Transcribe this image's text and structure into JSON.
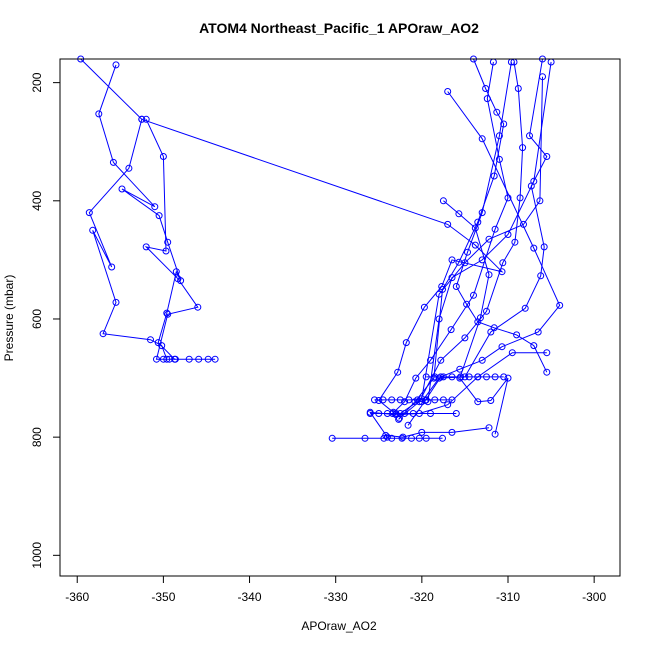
{
  "chart_data": {
    "type": "line",
    "title": "ATOM4 Northeast_Pacific_1 APOraw_AO2",
    "xlabel": "APOraw_AO2",
    "ylabel": "Pressure (mbar)",
    "xlim": [
      -362,
      -297
    ],
    "ylim": [
      1035,
      160
    ],
    "y_reversed": true,
    "xticks": [
      -360,
      -350,
      -340,
      -330,
      -320,
      -310,
      -300
    ],
    "yticks": [
      200,
      400,
      600,
      800,
      1000
    ],
    "marker": "open-circle",
    "line_color": "#0000ff",
    "grid": false,
    "series": [
      {
        "x": [
          -355.5,
          -357.5,
          -355.8,
          -351.0,
          -354.8,
          -350.5,
          -349.5,
          -348.0,
          -348.5,
          -349.6,
          -350.6,
          -348.7,
          -347.0,
          -345.9,
          -344.8,
          -344.0
        ],
        "y": [
          170,
          253,
          335,
          410,
          380,
          425,
          470,
          535,
          520,
          590,
          640,
          668,
          668,
          668,
          668,
          668
        ]
      },
      {
        "x": [
          -359.6,
          -352.5,
          -354.0,
          -358.6,
          -356.0,
          -358.2,
          -355.5,
          -357.0,
          -351.5,
          -350.2,
          -349.6
        ],
        "y": [
          160,
          262,
          345,
          420,
          512,
          450,
          572,
          625,
          635,
          645,
          668
        ]
      },
      {
        "x": [
          -352.0,
          -350.0,
          -349.7,
          -352.0,
          -348.3,
          -346.0,
          -349.5,
          -350.8,
          -350.0,
          -349.3,
          -348.6
        ],
        "y": [
          262,
          325,
          485,
          478,
          532,
          580,
          592,
          668,
          668,
          668,
          668
        ]
      },
      {
        "x": [
          -352.5,
          -317.0,
          -313.8,
          -310.7,
          -316.5,
          -317.7,
          -319.7,
          -321.8,
          -322.8,
          -325.0,
          -323.3
        ],
        "y": [
          262,
          440,
          475,
          520,
          500,
          545,
          580,
          640,
          690,
          738,
          758
        ]
      },
      {
        "x": [
          -317.5,
          -315.7,
          -313.8,
          -312.2,
          -313.2,
          -315.6,
          -313.5,
          -312.0,
          -310.0,
          -311.5
        ],
        "y": [
          400,
          422,
          446,
          525,
          598,
          700,
          740,
          738,
          700,
          795
        ]
      },
      {
        "x": [
          -314.0,
          -312.6,
          -311.3,
          -310.5,
          -311.6,
          -313.5,
          -315.7,
          -317.6,
          -318.6,
          -320.8,
          -322.7
        ],
        "y": [
          160,
          210,
          250,
          270,
          358,
          436,
          504,
          550,
          700,
          740,
          770
        ]
      },
      {
        "x": [
          -311.7,
          -312.4,
          -311.0,
          -310.0,
          -311.5,
          -314.0,
          -316.6,
          -319.0,
          -320.7,
          -322.0,
          -323.4
        ],
        "y": [
          165,
          227,
          330,
          395,
          448,
          560,
          618,
          670,
          700,
          740,
          760
        ]
      },
      {
        "x": [
          -309.3,
          -308.8,
          -308.3,
          -308.6,
          -309.2,
          -310.6,
          -312.5,
          -315.0,
          -317.8,
          -320.3,
          -322.6
        ],
        "y": [
          165,
          210,
          310,
          395,
          470,
          505,
          587,
          632,
          670,
          740,
          768
        ]
      },
      {
        "x": [
          -306.0,
          -307.5,
          -305.5,
          -307.3,
          -305.8,
          -306.2,
          -308.0,
          -312.0,
          -315.0,
          -318.0,
          -320.0
        ],
        "y": [
          160,
          290,
          325,
          375,
          478,
          527,
          582,
          622,
          698,
          700,
          740
        ]
      },
      {
        "x": [
          -309.6,
          -311.0,
          -313.0,
          -314.7,
          -316.0,
          -314.8,
          -313.5,
          -311.6,
          -309.0,
          -307.0,
          -305.5
        ],
        "y": [
          165,
          290,
          420,
          487,
          545,
          575,
          605,
          615,
          627,
          645,
          690
        ]
      },
      {
        "x": [
          -305.0,
          -307.0,
          -310.0,
          -313.0,
          -316.5,
          -318.0,
          -319.3
        ],
        "y": [
          165,
          367,
          457,
          500,
          530,
          600,
          740
        ]
      },
      {
        "x": [
          -306.0,
          -306.3,
          -308.2,
          -312.2,
          -315.0,
          -318.0,
          -320.0,
          -322.5
        ],
        "y": [
          190,
          400,
          440,
          465,
          505,
          558,
          735,
          760
        ]
      },
      {
        "x": [
          -317.0,
          -313.0,
          -307.0,
          -304.0,
          -306.5,
          -310.7,
          -313.0,
          -315.6,
          -317.8,
          -319.6,
          -321.6
        ],
        "y": [
          215,
          295,
          480,
          577,
          622,
          647,
          670,
          685,
          698,
          738,
          780
        ]
      },
      {
        "x": [
          -305.5,
          -309.5,
          -313.5,
          -317.0,
          -320.3,
          -323.0,
          -326.0,
          -324.0
        ],
        "y": [
          657,
          657,
          698,
          745,
          760,
          762,
          758,
          800
        ]
      },
      {
        "x": [
          -330.4,
          -326.6,
          -324.4,
          -323.5,
          -322.3,
          -321.2,
          -320.3,
          -319.5,
          -317.6
        ],
        "y": [
          802,
          802,
          802,
          802,
          802,
          802,
          802,
          802,
          802
        ]
      },
      {
        "x": [
          -324.2,
          -322.2,
          -320.0,
          -316.5,
          -312.2
        ],
        "y": [
          797,
          800,
          792,
          792,
          784
        ]
      },
      {
        "x": [
          -319.5,
          -318.5,
          -317.5,
          -316.5,
          -315.5,
          -314.5,
          -313.5,
          -312.5,
          -311.5,
          -310.5
        ],
        "y": [
          698,
          698,
          698,
          698,
          698,
          698,
          698,
          698,
          698,
          698
        ]
      },
      {
        "x": [
          -325.5,
          -324.5,
          -323.5,
          -322.5,
          -321.5,
          -320.5,
          -319.5,
          -318.5,
          -317.5,
          -316.5
        ],
        "y": [
          737,
          737,
          737,
          737,
          737,
          737,
          737,
          737,
          737,
          737
        ]
      },
      {
        "x": [
          -326.0,
          -325.0,
          -324.0,
          -323.0,
          -322.0,
          -321.0,
          -319.0,
          -316.0
        ],
        "y": [
          760,
          760,
          760,
          760,
          760,
          760,
          760,
          760
        ]
      }
    ]
  }
}
